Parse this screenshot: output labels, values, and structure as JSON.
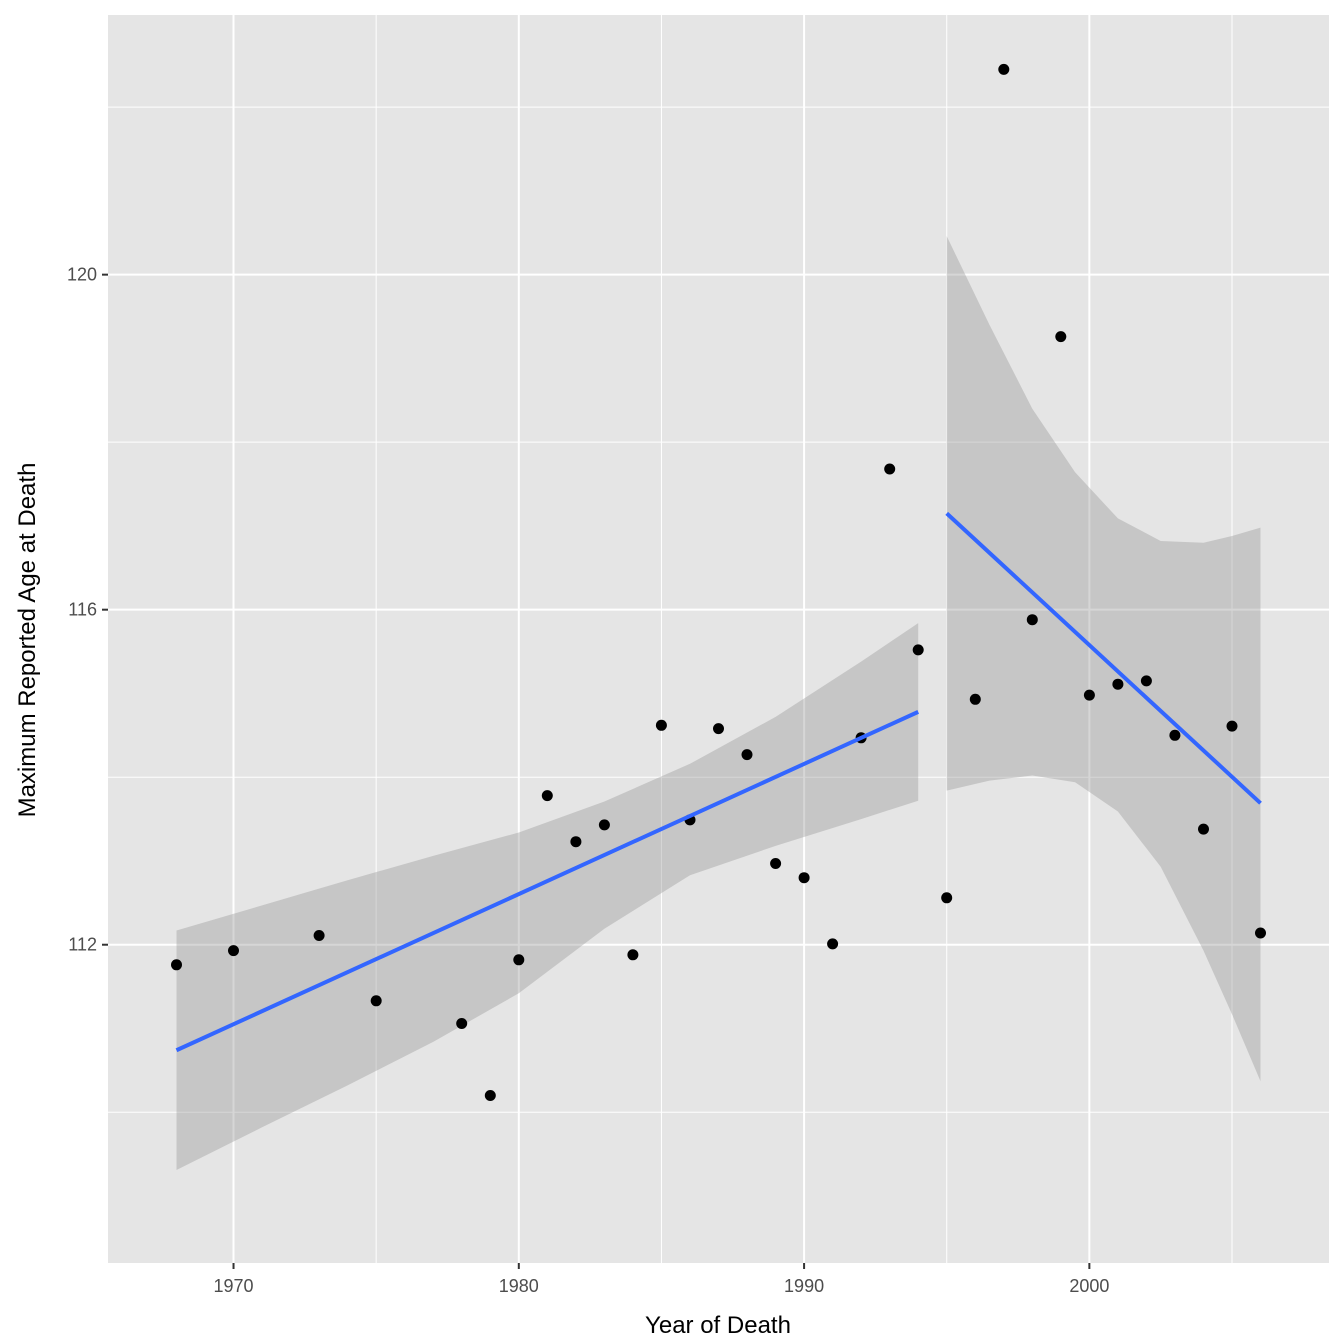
{
  "chart_data": {
    "type": "scatter",
    "title": "",
    "xlabel": "Year of Death",
    "ylabel": "Maximum Reported Age at Death",
    "xlim": [
      1965.6,
      2008.4
    ],
    "ylim": [
      108.2,
      123.1
    ],
    "x_ticks": [
      1970,
      1980,
      1990,
      2000
    ],
    "y_ticks": [
      112,
      116,
      120
    ],
    "grid": true,
    "legend": "none",
    "colors": {
      "panel": "#e5e5e5",
      "grid": "#ffffff",
      "points": "#000000",
      "fit_line": "#3366ff",
      "ribbon": "#999999"
    },
    "points": [
      {
        "x": 1968,
        "y": 111.76
      },
      {
        "x": 1970,
        "y": 111.93
      },
      {
        "x": 1973,
        "y": 112.11
      },
      {
        "x": 1975,
        "y": 111.33
      },
      {
        "x": 1978,
        "y": 111.06
      },
      {
        "x": 1979,
        "y": 110.2
      },
      {
        "x": 1980,
        "y": 111.82
      },
      {
        "x": 1981,
        "y": 113.78
      },
      {
        "x": 1982,
        "y": 113.23
      },
      {
        "x": 1983,
        "y": 113.43
      },
      {
        "x": 1984,
        "y": 111.88
      },
      {
        "x": 1985,
        "y": 114.62
      },
      {
        "x": 1986,
        "y": 113.49
      },
      {
        "x": 1987,
        "y": 114.58
      },
      {
        "x": 1988,
        "y": 114.27
      },
      {
        "x": 1989,
        "y": 112.97
      },
      {
        "x": 1990,
        "y": 112.8
      },
      {
        "x": 1991,
        "y": 112.01
      },
      {
        "x": 1992,
        "y": 114.47
      },
      {
        "x": 1993,
        "y": 117.68
      },
      {
        "x": 1994,
        "y": 115.52
      },
      {
        "x": 1995,
        "y": 112.56
      },
      {
        "x": 1996,
        "y": 114.93
      },
      {
        "x": 1997,
        "y": 122.45
      },
      {
        "x": 1998,
        "y": 115.88
      },
      {
        "x": 1999,
        "y": 119.26
      },
      {
        "x": 2000,
        "y": 114.98
      },
      {
        "x": 2001,
        "y": 115.11
      },
      {
        "x": 2002,
        "y": 115.15
      },
      {
        "x": 2003,
        "y": 114.5
      },
      {
        "x": 2004,
        "y": 113.38
      },
      {
        "x": 2005,
        "y": 114.61
      },
      {
        "x": 2006,
        "y": 112.14
      }
    ],
    "fits": [
      {
        "x_start": 1968,
        "x_end": 1994,
        "y_start": 110.74,
        "y_end": 114.78,
        "ribbon": {
          "x": [
            1968,
            1971,
            1974,
            1977,
            1980,
            1983,
            1986,
            1989,
            1992,
            1994
          ],
          "upper": [
            112.17,
            112.47,
            112.77,
            113.06,
            113.34,
            113.71,
            114.16,
            114.72,
            115.38,
            115.84
          ],
          "lower": [
            109.31,
            109.82,
            110.32,
            110.84,
            111.42,
            112.19,
            112.83,
            113.18,
            113.5,
            113.72
          ]
        }
      },
      {
        "x_start": 1995,
        "x_end": 2006,
        "y_start": 117.15,
        "y_end": 113.69,
        "ribbon": {
          "x": [
            1995,
            1996.5,
            1998,
            1999.5,
            2001,
            2002.5,
            2004,
            2005,
            2006
          ],
          "upper": [
            120.46,
            119.4,
            118.4,
            117.64,
            117.09,
            116.82,
            116.8,
            116.88,
            116.98
          ],
          "lower": [
            113.84,
            113.96,
            114.02,
            113.94,
            113.59,
            112.93,
            111.93,
            111.17,
            110.37
          ]
        }
      }
    ]
  }
}
